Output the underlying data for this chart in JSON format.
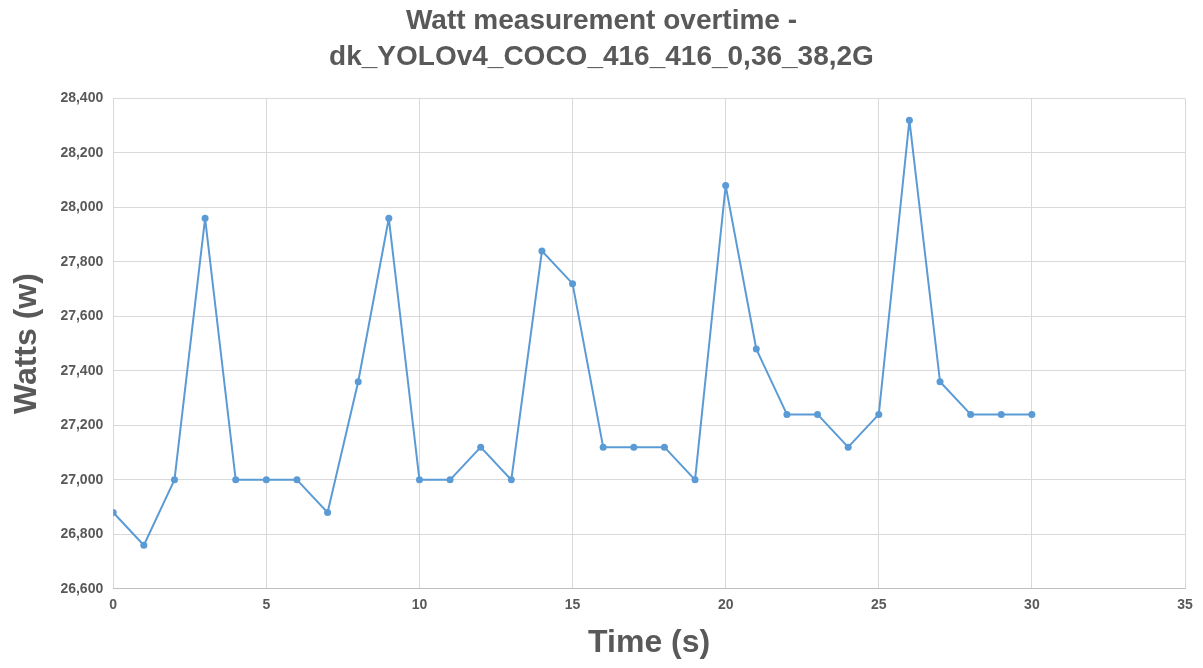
{
  "chart_data": {
    "type": "line",
    "title": "Watt measurement overtime - dk_YOLOv4_COCO_416_416_0,36_38,2G",
    "xlabel": "Time (s)",
    "ylabel": "Watts (w)",
    "x": [
      0,
      1,
      2,
      3,
      4,
      5,
      6,
      7,
      8,
      9,
      10,
      11,
      12,
      13,
      14,
      15,
      16,
      17,
      18,
      19,
      20,
      21,
      22,
      23,
      24,
      25,
      26,
      27,
      28,
      29,
      30
    ],
    "series": [
      {
        "color": "#5b9bd5",
        "values": [
          26880,
          26760,
          27000,
          27960,
          27000,
          27000,
          27000,
          26880,
          27360,
          27960,
          27000,
          27000,
          27120,
          27000,
          27840,
          27720,
          27120,
          27120,
          27120,
          27000,
          28080,
          27480,
          27240,
          27240,
          27120,
          27240,
          28320,
          27360,
          27240,
          27240,
          27240
        ]
      }
    ],
    "xlim": [
      0,
      35
    ],
    "xticks": [
      0,
      5,
      10,
      15,
      20,
      25,
      30,
      35
    ],
    "ylim": [
      26600,
      28400
    ],
    "yticks": [
      {
        "value": 26600,
        "label": "26,600"
      },
      {
        "value": 26800,
        "label": "26,800"
      },
      {
        "value": 27000,
        "label": "27,000"
      },
      {
        "value": 27200,
        "label": "27,200"
      },
      {
        "value": 27400,
        "label": "27,400"
      },
      {
        "value": 27600,
        "label": "27,600"
      },
      {
        "value": 27800,
        "label": "27,800"
      },
      {
        "value": 28000,
        "label": "28,000"
      },
      {
        "value": 28200,
        "label": "28,200"
      },
      {
        "value": 28400,
        "label": "28,400"
      }
    ],
    "grid": true,
    "legend": false,
    "marker": "circle",
    "line_style": "solid"
  }
}
